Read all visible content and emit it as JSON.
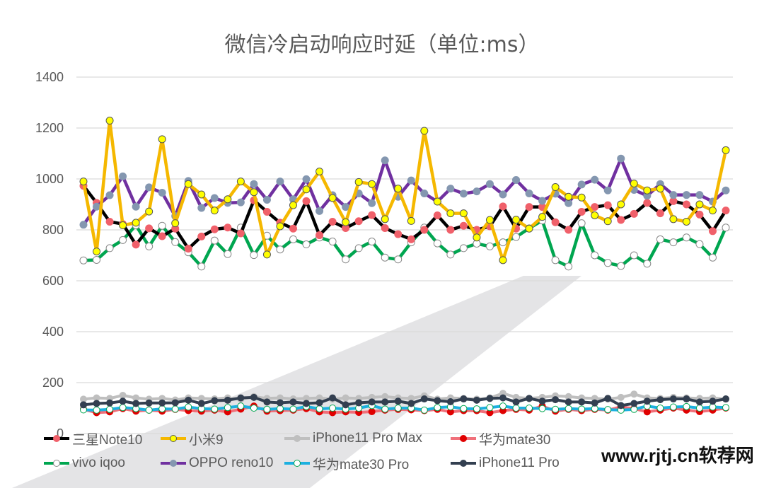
{
  "chart_data": {
    "type": "line",
    "title": "微信冷启动响应时延（单位:ms）",
    "xlabel": "",
    "ylabel": "",
    "ylim": [
      0,
      1400
    ],
    "yticks": [
      "0",
      "200",
      "400",
      "600",
      "800",
      "1000",
      "1200",
      "1400"
    ],
    "grid": true,
    "legend_position": "bottom",
    "x": [
      1,
      2,
      3,
      4,
      5,
      6,
      7,
      8,
      9,
      10,
      11,
      12,
      13,
      14,
      15,
      16,
      17,
      18,
      19,
      20,
      21,
      22,
      23,
      24,
      25,
      26,
      27,
      28,
      29,
      30,
      31,
      32,
      33,
      34,
      35,
      36,
      37,
      38,
      39,
      40,
      41,
      42,
      43,
      44,
      45,
      46,
      47,
      48,
      49,
      50
    ],
    "series": [
      {
        "name": "iPhone11 Pro Max",
        "color": "#BFBFBF",
        "marker": "#BFBFBF",
        "marker_stroke": "#BFBFBF",
        "values": [
          135,
          140,
          138,
          150,
          140,
          135,
          138,
          132,
          140,
          138,
          136,
          140,
          135,
          145,
          138,
          140,
          136,
          138,
          140,
          135,
          140,
          138,
          142,
          145,
          140,
          138,
          148,
          135,
          140,
          138,
          135,
          140,
          158,
          142,
          138,
          142,
          148,
          145,
          140,
          138,
          135,
          142,
          155,
          140,
          138,
          142,
          140,
          138,
          140,
          135
        ]
      },
      {
        "name": "华为mate30",
        "color": "#F0707A",
        "marker": "#E00000",
        "marker_stroke": "#E00000",
        "values": [
          95,
          82,
          85,
          98,
          88,
          92,
          88,
          95,
          90,
          88,
          92,
          85,
          96,
          108,
          88,
          90,
          92,
          98,
          85,
          82,
          85,
          83,
          86,
          92,
          95,
          93,
          90,
          95,
          85,
          90,
          90,
          82,
          90,
          95,
          92,
          108,
          88,
          95,
          90,
          95,
          92,
          105,
          98,
          85,
          92,
          100,
          92,
          86,
          92,
          100
        ]
      },
      {
        "name": "华为mate30 Pro",
        "color": "#1CB0E0",
        "marker": "#FFFFFF",
        "marker_stroke": "#00A650",
        "values": [
          93,
          92,
          95,
          102,
          98,
          92,
          97,
          96,
          104,
          98,
          96,
          102,
          108,
          100,
          95,
          98,
          96,
          106,
          97,
          100,
          96,
          100,
          110,
          96,
          100,
          100,
          92,
          102,
          105,
          98,
          97,
          102,
          108,
          100,
          100,
          98,
          95,
          98,
          96,
          98,
          94,
          92,
          95,
          108,
          100,
          104,
          106,
          100,
          104,
          102
        ]
      },
      {
        "name": "iPhone11 Pro",
        "color": "#333F50",
        "marker": "#333F50",
        "marker_stroke": "#333F50",
        "values": [
          113,
          118,
          120,
          127,
          118,
          120,
          120,
          121,
          131,
          118,
          129,
          131,
          140,
          142,
          124,
          121,
          124,
          118,
          121,
          140,
          113,
          121,
          124,
          124,
          127,
          118,
          136,
          129,
          125,
          136,
          131,
          138,
          140,
          124,
          138,
          127,
          133,
          124,
          124,
          120,
          138,
          110,
          118,
          127,
          133,
          136,
          136,
          124,
          127,
          136
        ]
      },
      {
        "name": "vivo iqoo",
        "color": "#00A650",
        "marker": "#FFFFFF",
        "marker_stroke": "#888888",
        "values": [
          680,
          682,
          728,
          760,
          818,
          735,
          816,
          752,
          712,
          656,
          758,
          705,
          809,
          701,
          777,
          723,
          763,
          743,
          770,
          754,
          684,
          728,
          754,
          691,
          684,
          751,
          809,
          747,
          703,
          728,
          746,
          735,
          751,
          772,
          806,
          837,
          681,
          656,
          826,
          700,
          670,
          658,
          700,
          667,
          763,
          751,
          770,
          744,
          691,
          809
        ]
      },
      {
        "name": "三星Note10",
        "color": "#000000",
        "marker": "#F0606A",
        "marker_stroke": "#F0606A",
        "values": [
          973,
          906,
          832,
          823,
          742,
          806,
          775,
          805,
          726,
          774,
          802,
          809,
          786,
          916,
          871,
          828,
          805,
          913,
          779,
          832,
          807,
          834,
          858,
          807,
          783,
          763,
          800,
          857,
          800,
          816,
          800,
          814,
          892,
          805,
          890,
          890,
          830,
          800,
          871,
          890,
          897,
          839,
          863,
          906,
          865,
          913,
          900,
          860,
          795,
          876
        ]
      },
      {
        "name": "OPPO reno10",
        "color": "#7030A0",
        "marker": "#8497B0",
        "marker_stroke": "#8497B0",
        "values": [
          820,
          891,
          936,
          1010,
          891,
          967,
          946,
          854,
          992,
          886,
          925,
          906,
          908,
          980,
          918,
          990,
          920,
          999,
          874,
          936,
          890,
          943,
          905,
          1073,
          930,
          994,
          943,
          911,
          962,
          942,
          951,
          980,
          939,
          996,
          943,
          914,
          942,
          905,
          978,
          997,
          955,
          1080,
          957,
          934,
          980,
          937,
          937,
          937,
          911,
          955
        ]
      },
      {
        "name": "小米9",
        "color": "#F5B800",
        "marker": "#FFFF00",
        "marker_stroke": "#555555",
        "values": [
          990,
          715,
          1229,
          818,
          828,
          872,
          1156,
          826,
          980,
          939,
          876,
          920,
          990,
          948,
          703,
          814,
          897,
          959,
          1029,
          925,
          830,
          988,
          980,
          842,
          962,
          835,
          1189,
          911,
          865,
          865,
          770,
          839,
          681,
          840,
          805,
          851,
          968,
          930,
          927,
          857,
          834,
          900,
          982,
          955,
          962,
          842,
          832,
          900,
          876,
          1113
        ]
      }
    ]
  },
  "legend_order": [
    "三星Note10",
    "小米9",
    "iPhone11 Pro Max",
    "华为mate30",
    "vivo iqoo",
    "OPPO reno10",
    "华为mate30 Pro",
    "iPhone11 Pro"
  ],
  "watermark": "www.rjtj.cn软荐网"
}
